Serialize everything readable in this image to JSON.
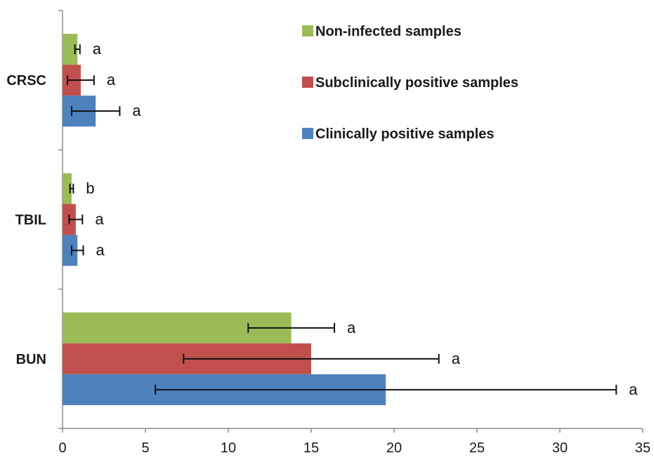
{
  "chart_data": {
    "type": "bar",
    "orientation": "horizontal",
    "title": "",
    "xlabel": "",
    "ylabel": "",
    "categories": [
      "CRSC",
      "TBIL",
      "BUN"
    ],
    "xlim": [
      0,
      35
    ],
    "x_ticks": [
      0,
      5,
      10,
      15,
      20,
      25,
      30,
      35
    ],
    "grid": false,
    "legend_position": "top-right",
    "series": [
      {
        "name": "Non-infected samples",
        "color": "#9bbb59",
        "values": [
          0.9,
          0.55,
          13.8
        ],
        "error": [
          0.15,
          0.1,
          2.6
        ],
        "significance": [
          "a",
          "b",
          "a"
        ]
      },
      {
        "name": "Subclinically positive samples",
        "color": "#c0504d",
        "values": [
          1.1,
          0.8,
          15.0
        ],
        "error": [
          0.8,
          0.4,
          7.7
        ],
        "significance": [
          "a",
          "a",
          "a"
        ]
      },
      {
        "name": "Clinically positive samples",
        "color": "#4f81bd",
        "values": [
          2.0,
          0.9,
          19.5
        ],
        "error": [
          1.45,
          0.35,
          13.9
        ],
        "significance": [
          "a",
          "a",
          "a"
        ]
      }
    ]
  }
}
